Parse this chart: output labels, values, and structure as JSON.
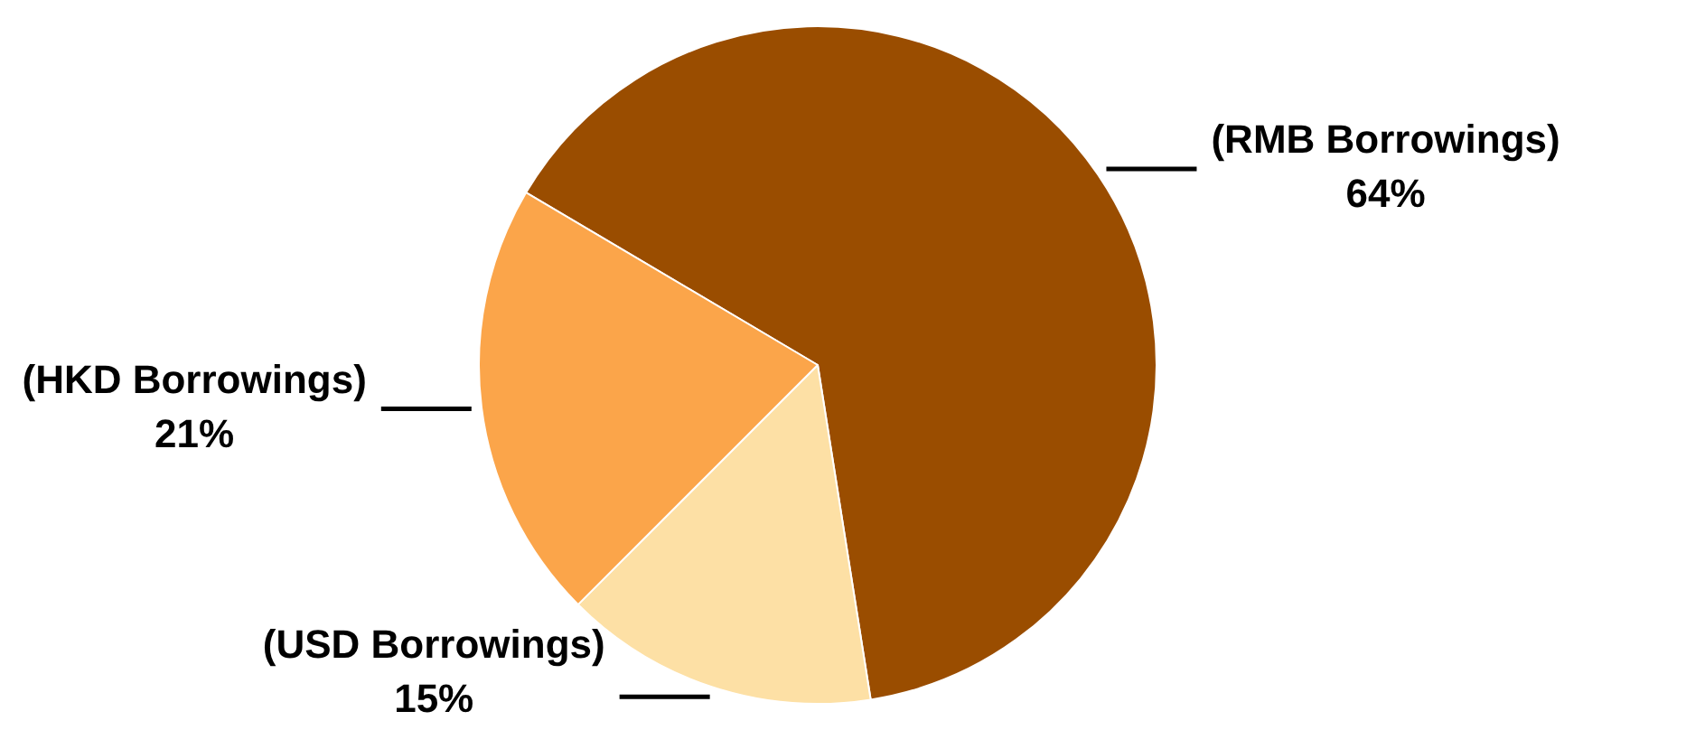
{
  "chart_data": {
    "type": "pie",
    "categories": [
      "(RMB Borrowings)",
      "(USD Borrowings)",
      "(HKD Borrowings)"
    ],
    "values": [
      64,
      15,
      21
    ],
    "colors": [
      "#9a4d00",
      "#fde0a5",
      "#fba54a"
    ],
    "value_labels": [
      "64%",
      "15%",
      "21%"
    ],
    "legend": false
  }
}
